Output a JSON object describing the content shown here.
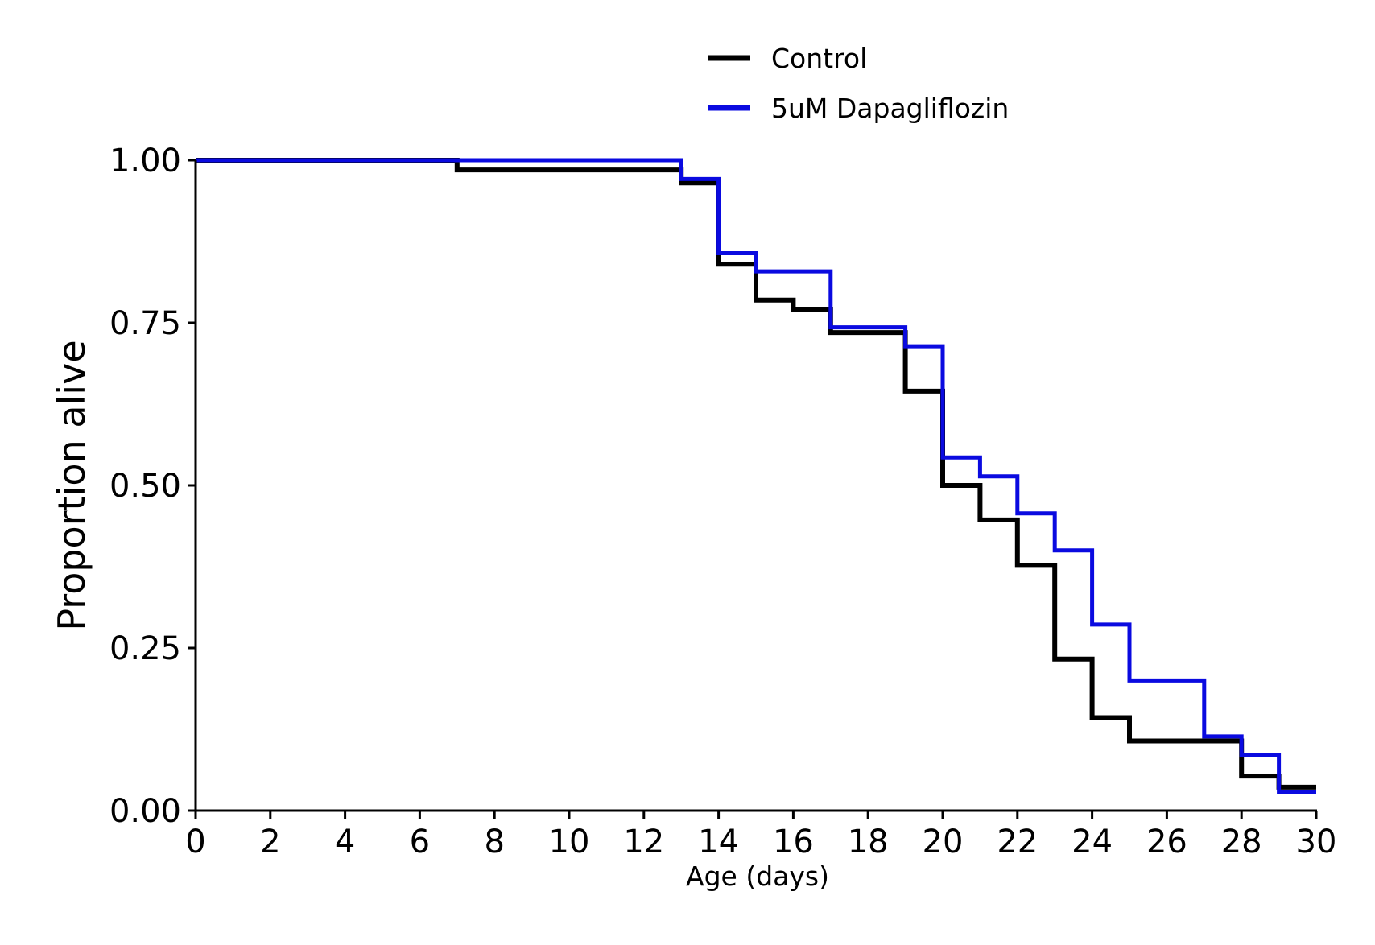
{
  "chart_data": {
    "type": "line",
    "step": "post",
    "title": "",
    "xlabel": "Age (days)",
    "ylabel": "Proportion alive",
    "xlim": [
      0,
      30
    ],
    "ylim": [
      0,
      1
    ],
    "xticks": [
      0,
      2,
      4,
      6,
      8,
      10,
      12,
      14,
      16,
      18,
      20,
      22,
      24,
      26,
      28,
      30
    ],
    "xtick_labels": [
      "0",
      "2",
      "4",
      "6",
      "8",
      "10",
      "12",
      "14",
      "16",
      "18",
      "20",
      "22",
      "24",
      "26",
      "28",
      "30"
    ],
    "yticks": [
      0,
      0.25,
      0.5,
      0.75,
      1
    ],
    "ytick_labels": [
      "0.00",
      "0.25",
      "0.50",
      "0.75",
      "1.00"
    ],
    "grid": false,
    "legend_position": "top-center",
    "series": [
      {
        "name": "Control",
        "color": "#000000",
        "x": [
          0,
          7,
          13,
          14,
          15,
          16,
          17,
          19,
          20,
          21,
          22,
          23,
          24,
          25,
          28,
          29,
          30
        ],
        "y": [
          1.0,
          0.985,
          0.965,
          0.84,
          0.785,
          0.77,
          0.735,
          0.645,
          0.5,
          0.447,
          0.377,
          0.233,
          0.143,
          0.107,
          0.053,
          0.036,
          0.036
        ]
      },
      {
        "name": "5uM Dapagliflozin",
        "color": "#0a0ae0",
        "x": [
          0,
          13,
          14,
          15,
          17,
          19,
          20,
          21,
          22,
          23,
          24,
          25,
          27,
          28,
          29,
          30
        ],
        "y": [
          1.0,
          0.971,
          0.857,
          0.829,
          0.743,
          0.714,
          0.543,
          0.514,
          0.457,
          0.4,
          0.286,
          0.2,
          0.114,
          0.086,
          0.029,
          0.029
        ]
      }
    ]
  }
}
